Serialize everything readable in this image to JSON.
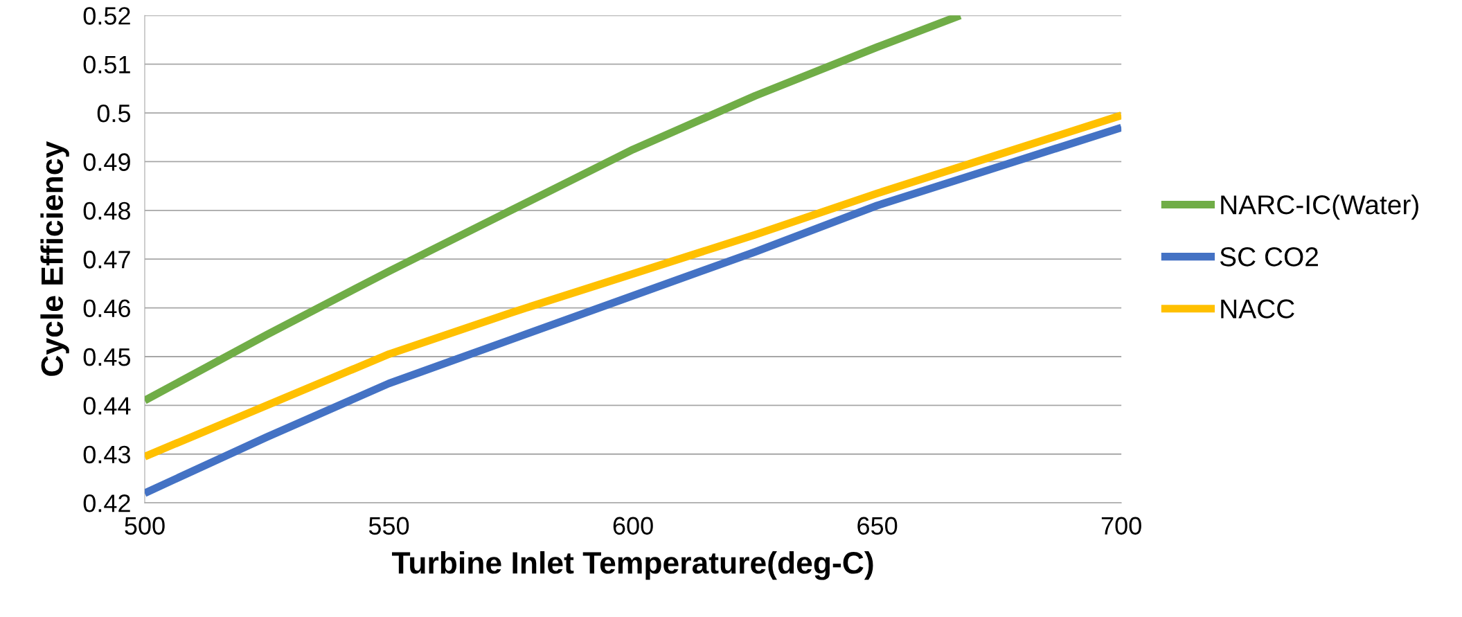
{
  "chart_data": {
    "type": "line",
    "xlabel": "Turbine Inlet Temperature(deg-C)",
    "ylabel": "Cycle Efficiency",
    "xlim": [
      500,
      700
    ],
    "xticks": [
      500,
      550,
      600,
      650,
      700
    ],
    "ylim": [
      0.42,
      0.52
    ],
    "yticks": [
      0.42,
      0.43,
      0.44,
      0.45,
      0.46,
      0.47,
      0.48,
      0.49,
      0.5,
      0.51,
      0.52
    ],
    "grid": "y",
    "legend": "right",
    "marker": "none",
    "line_style": "solid",
    "series": [
      {
        "name": "NARC-IC(Water)",
        "color": "#70ad47",
        "x": [
          500,
          525,
          550,
          575,
          600,
          625,
          650,
          667
        ],
        "values": [
          0.441,
          0.4545,
          0.4675,
          0.48,
          0.4925,
          0.5035,
          0.5135,
          0.52
        ]
      },
      {
        "name": "SC CO2",
        "color": "#4472c4",
        "x": [
          500,
          525,
          550,
          575,
          600,
          625,
          650,
          675,
          700
        ],
        "values": [
          0.422,
          0.4335,
          0.4445,
          0.4535,
          0.4625,
          0.4715,
          0.481,
          0.489,
          0.497
        ]
      },
      {
        "name": "NACC",
        "color": "#ffc000",
        "x": [
          500,
          525,
          550,
          575,
          600,
          625,
          650,
          675,
          700
        ],
        "values": [
          0.4295,
          0.44,
          0.4505,
          0.459,
          0.467,
          0.475,
          0.4835,
          0.4915,
          0.4995
        ]
      }
    ]
  }
}
